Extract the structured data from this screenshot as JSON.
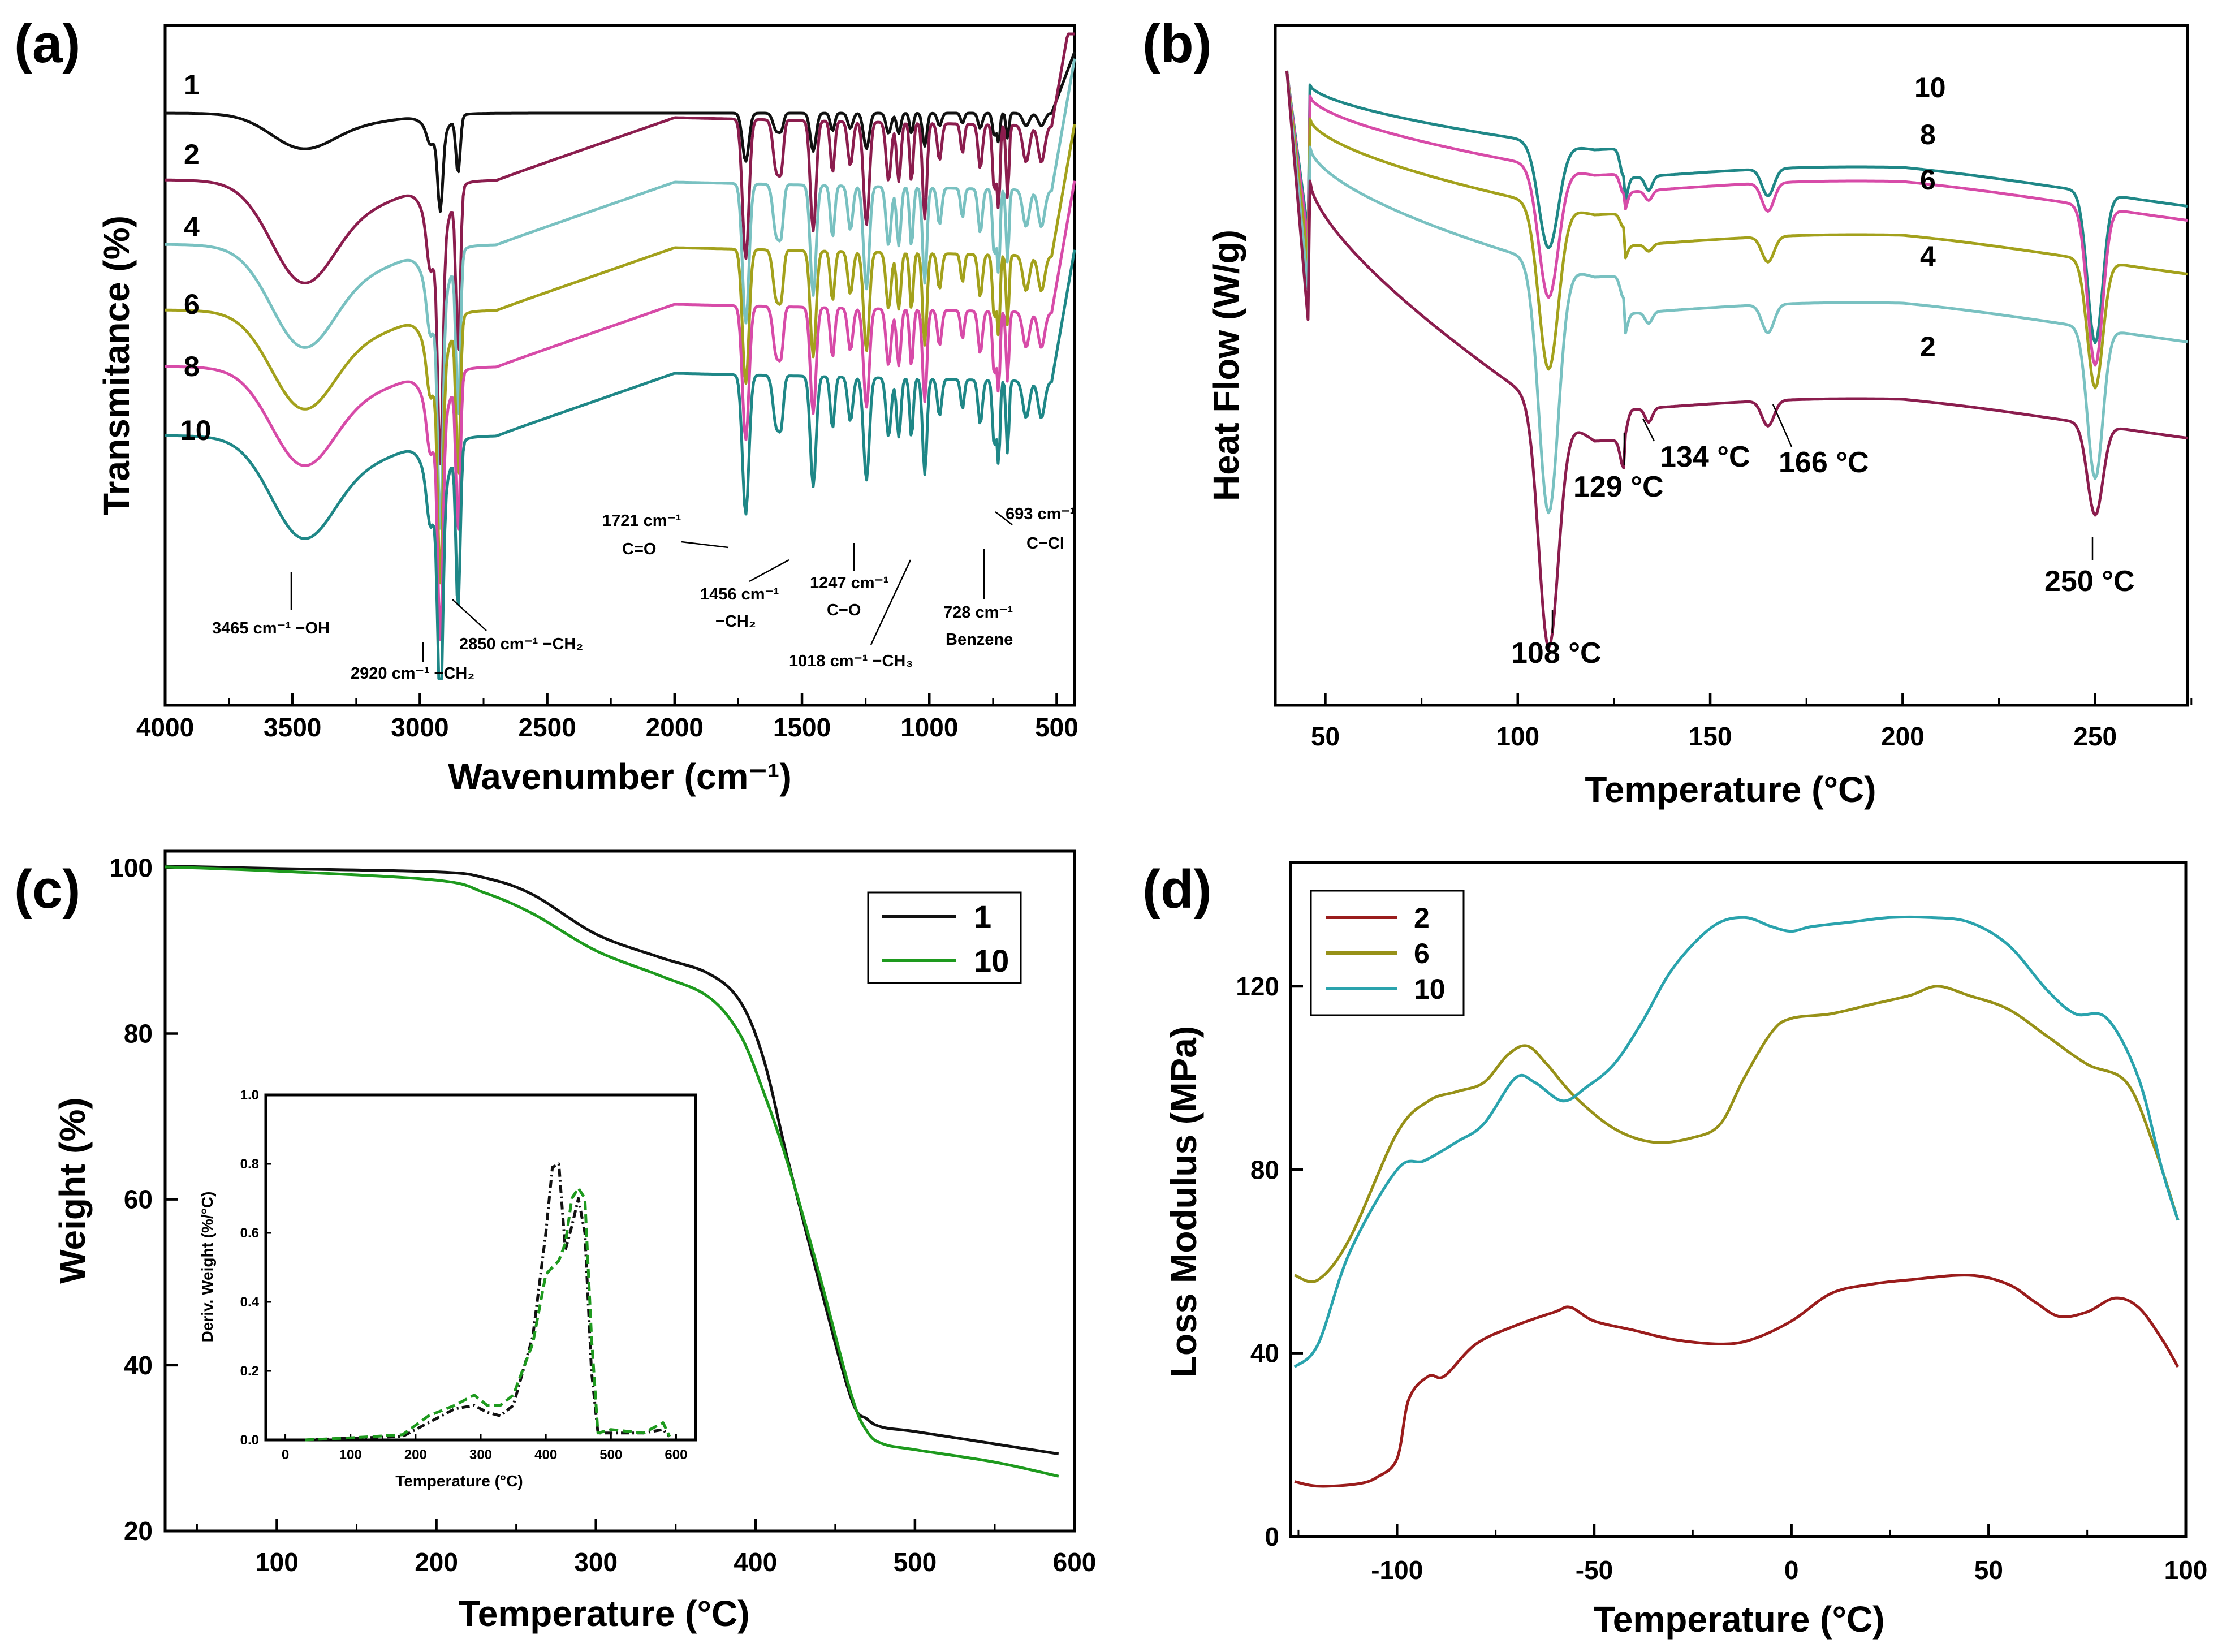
{
  "colors": {
    "black": "#111111",
    "maroon": "#8b1d4e",
    "lightcyan": "#79c1c1",
    "olive": "#a3a11c",
    "pink": "#d74ba8",
    "teal": "#1f8787",
    "green": "#1e9a1e",
    "darkred": "#9a1c1c",
    "olive_d": "#979118",
    "teal_d": "#2aa3ad"
  },
  "chart_data": [
    {
      "panel": "(a)",
      "type": "line",
      "xlabel": "Wavenumber (cm⁻¹)",
      "ylabel": "Transmitance (%)",
      "xlim": [
        4000,
        430
      ],
      "ylim": [
        0,
        1
      ],
      "xticks": [
        4000,
        3500,
        3000,
        2500,
        2000,
        1500,
        1000,
        500
      ],
      "series_labels": [
        "1",
        "2",
        "4",
        "6",
        "8",
        "10"
      ],
      "offsets": [
        0.9,
        0.78,
        0.67,
        0.59,
        0.52,
        0.44
      ],
      "annotations": [
        {
          "text": "3465 cm⁻¹ −OH",
          "x": 3465
        },
        {
          "text": "2920 cm⁻¹ −CH₂",
          "x": 2920
        },
        {
          "text": "2850 cm⁻¹ −CH₂",
          "x": 2850
        },
        {
          "text": "1721 cm⁻¹",
          "sub": "C=O",
          "x": 1721
        },
        {
          "text": "1456 cm⁻¹",
          "sub": "−CH₂",
          "x": 1456
        },
        {
          "text": "1247 cm⁻¹",
          "sub": "C−O",
          "x": 1247
        },
        {
          "text": "1018 cm⁻¹ −CH₃",
          "x": 1018
        },
        {
          "text": "728 cm⁻¹",
          "sub": "Benzene",
          "x": 728
        },
        {
          "text": "693 cm⁻¹",
          "sub": "C−Cl",
          "x": 693
        }
      ]
    },
    {
      "panel": "(b)",
      "type": "line",
      "xlabel": "Temperature (°C)",
      "ylabel": "Heat Flow (W/g)",
      "xlim": [
        37,
        274
      ],
      "xticks": [
        50,
        100,
        150,
        200,
        250
      ],
      "series_labels": [
        "10",
        "8",
        "6",
        "4",
        "2"
      ],
      "peaks_C": [
        108,
        129,
        134,
        166,
        250
      ],
      "peak_labels": [
        "108 °C",
        "129 °C",
        "134 °C",
        "166 °C",
        "250 °C"
      ]
    },
    {
      "panel": "(c)",
      "type": "line",
      "xlabel": "Temperature (°C)",
      "ylabel": "Weight (%)",
      "xlim": [
        30,
        600
      ],
      "ylim": [
        20,
        102
      ],
      "xticks": [
        100,
        200,
        300,
        400,
        500,
        600
      ],
      "yticks": [
        20,
        40,
        60,
        80,
        100
      ],
      "legend": [
        "1",
        "10"
      ],
      "series": [
        {
          "name": "1",
          "x": [
            30,
            100,
            200,
            230,
            260,
            300,
            340,
            370,
            390,
            405,
            420,
            440,
            460,
            470,
            480,
            500,
            550,
            590
          ],
          "y": [
            100.2,
            99.9,
            99.5,
            98.8,
            96.8,
            92.0,
            89.2,
            87.3,
            84.0,
            77.0,
            65.0,
            50.0,
            36.0,
            33.5,
            32.5,
            32.0,
            30.5,
            29.3
          ]
        },
        {
          "name": "10",
          "x": [
            30,
            100,
            200,
            230,
            260,
            300,
            340,
            370,
            390,
            405,
            420,
            440,
            460,
            470,
            480,
            500,
            550,
            590
          ],
          "y": [
            100.1,
            99.6,
            98.5,
            97.0,
            94.5,
            90.0,
            87.0,
            84.5,
            80.0,
            73.0,
            64.5,
            51.0,
            36.5,
            32.0,
            30.5,
            29.8,
            28.3,
            26.6
          ]
        }
      ],
      "inset": {
        "xlabel": "Temperature (°C)",
        "ylabel": "Deriv. Weight (%/°C)",
        "xlim": [
          -30,
          630
        ],
        "ylim": [
          0,
          1.0
        ],
        "xticks": [
          0,
          100,
          200,
          300,
          400,
          500,
          600
        ],
        "yticks": [
          0.0,
          0.2,
          0.4,
          0.6,
          0.8,
          1.0
        ],
        "series": [
          {
            "name": "1",
            "x": [
              30,
              100,
              180,
              220,
              260,
              290,
              310,
              330,
              350,
              380,
              400,
              410,
              420,
              430,
              440,
              450,
              460,
              470,
              480,
              500,
              550,
              580,
              590
            ],
            "y": [
              0.0,
              0.005,
              0.01,
              0.05,
              0.09,
              0.1,
              0.08,
              0.07,
              0.1,
              0.3,
              0.6,
              0.79,
              0.8,
              0.55,
              0.62,
              0.7,
              0.6,
              0.2,
              0.02,
              0.02,
              0.02,
              0.03,
              0.01
            ]
          },
          {
            "name": "10",
            "x": [
              30,
              100,
              180,
              220,
              260,
              290,
              310,
              330,
              350,
              380,
              400,
              410,
              420,
              430,
              440,
              450,
              460,
              470,
              480,
              500,
              550,
              580,
              590
            ],
            "y": [
              0.0,
              0.006,
              0.015,
              0.07,
              0.1,
              0.13,
              0.1,
              0.1,
              0.13,
              0.28,
              0.48,
              0.5,
              0.52,
              0.57,
              0.7,
              0.73,
              0.7,
              0.3,
              0.02,
              0.03,
              0.02,
              0.05,
              0.01
            ]
          }
        ]
      }
    },
    {
      "panel": "(d)",
      "type": "line",
      "xlabel": "Temperature (°C)",
      "ylabel": "Loss Modulus (MPa)",
      "xlim": [
        -127,
        100
      ],
      "ylim": [
        0,
        147
      ],
      "xticks": [
        -100,
        -50,
        0,
        50,
        100
      ],
      "yticks": [
        0,
        40,
        80,
        120
      ],
      "legend": [
        "2",
        "6",
        "10"
      ],
      "series": [
        {
          "name": "2",
          "x": [
            -126,
            -120,
            -110,
            -105,
            -100,
            -97,
            -92,
            -88,
            -80,
            -70,
            -60,
            -56,
            -50,
            -40,
            -30,
            -18,
            -10,
            0,
            10,
            20,
            30,
            45,
            55,
            62,
            68,
            75,
            82,
            88,
            94,
            98
          ],
          "y": [
            12,
            11,
            11.5,
            13,
            17,
            30,
            35,
            35,
            42,
            46,
            49,
            50,
            47,
            45,
            43,
            42,
            43,
            47,
            53,
            55,
            56,
            57,
            55,
            51,
            48,
            49,
            52,
            50,
            43,
            37
          ]
        },
        {
          "name": "6",
          "x": [
            -126,
            -120,
            -112,
            -100,
            -92,
            -85,
            -78,
            -72,
            -67,
            -62,
            -55,
            -45,
            -35,
            -25,
            -18,
            -12,
            -5,
            0,
            10,
            20,
            30,
            37,
            45,
            55,
            65,
            75,
            85,
            92,
            98
          ],
          "y": [
            57,
            56,
            65,
            88,
            95,
            97,
            99,
            105,
            107,
            103,
            96,
            89,
            86,
            87,
            90,
            100,
            110,
            113,
            114,
            116,
            118,
            120,
            118,
            115,
            109,
            103,
            99,
            85,
            69
          ]
        },
        {
          "name": "10",
          "x": [
            -126,
            -120,
            -112,
            -100,
            -93,
            -85,
            -78,
            -70,
            -65,
            -58,
            -52,
            -45,
            -38,
            -30,
            -20,
            -12,
            -5,
            0,
            5,
            15,
            25,
            35,
            45,
            55,
            65,
            72,
            80,
            88,
            94,
            98
          ],
          "y": [
            37,
            42,
            62,
            80,
            82,
            86,
            90,
            100,
            99,
            95,
            98,
            103,
            112,
            124,
            133,
            135,
            133,
            132,
            133,
            134,
            135,
            135,
            134,
            129,
            119,
            114,
            113,
            100,
            80,
            69
          ]
        }
      ]
    }
  ]
}
